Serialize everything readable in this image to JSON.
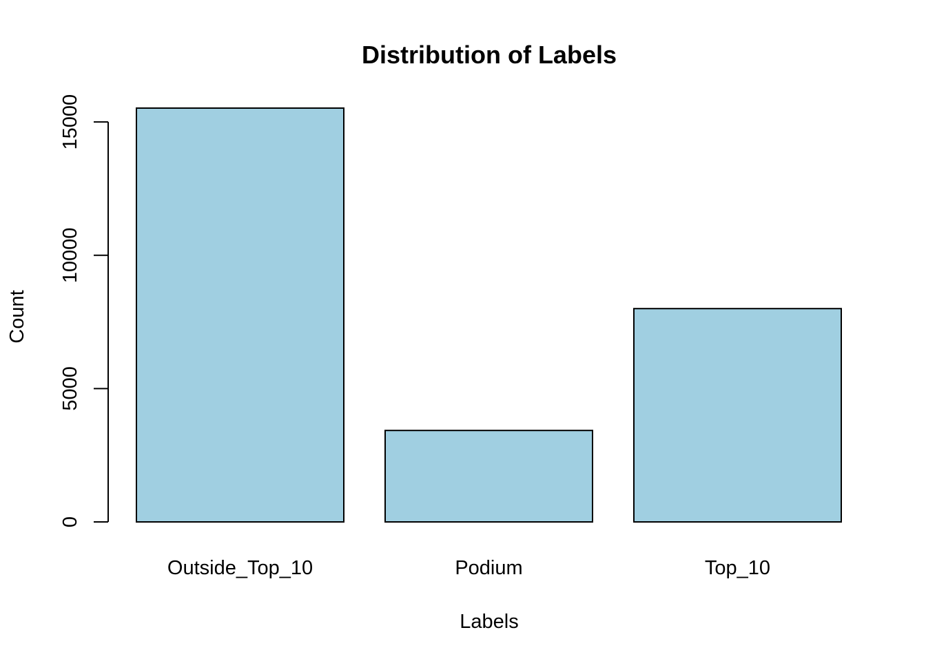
{
  "chart_data": {
    "type": "bar",
    "title": "Distribution of Labels",
    "xlabel": "Labels",
    "ylabel": "Count",
    "categories": [
      "Outside_Top_10",
      "Podium",
      "Top_10"
    ],
    "values": [
      15520,
      3430,
      8000
    ],
    "ylim": [
      0,
      15520
    ],
    "yticks": [
      "0",
      "5000",
      "10000",
      "15000"
    ],
    "bar_color": "#a0cfe1",
    "grid": false,
    "legend": false
  }
}
